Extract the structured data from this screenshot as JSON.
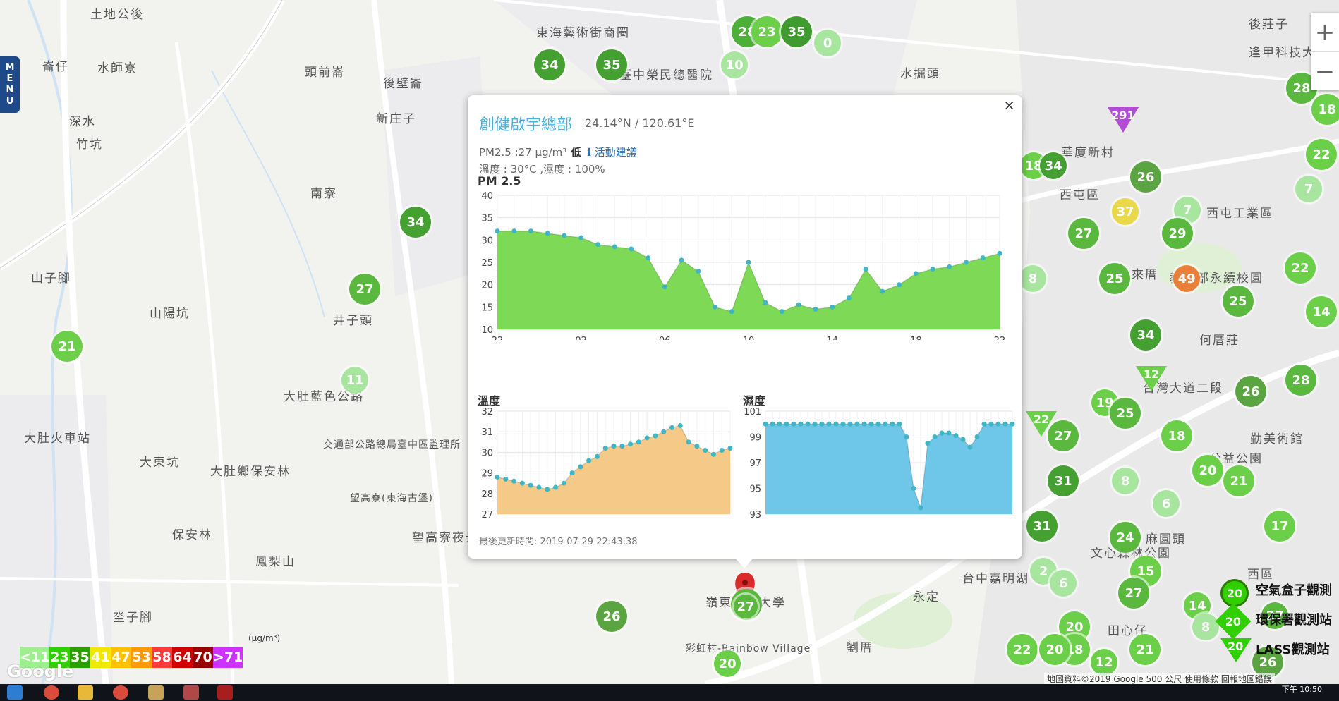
{
  "map_labels": [
    "土地公後",
    "崙仔",
    "水師寮",
    "頭前崙",
    "後壁崙",
    "新庄子",
    "深水",
    "竹坑",
    "南寮",
    "山子腳",
    "山陽坑",
    "井子頭",
    "大肚藍色公路",
    "大肚火車站",
    "大東坑",
    "大肚鄉保安林",
    "保安林",
    "鳳梨山",
    "坔子腳",
    "交通部公路總局臺中區監理所",
    "望高寮(東海古堡)",
    "望高寮夜景",
    "東海藝術街商圈",
    "臺中榮民總醫院",
    "水掘頭",
    "後莊子",
    "逢甲科技大學",
    "華廈新村",
    "西屯區",
    "西屯工業區",
    "來厝",
    "教育部永續校園",
    "何厝莊",
    "台灣大道二段",
    "彩虹村-Rainbow Village",
    "永定",
    "台中嘉明湖",
    "劉厝",
    "麻園頭",
    "西區",
    "文心森林公園",
    "勤美術館",
    "公益公園",
    "田心仔",
    "嶺東科技大學"
  ],
  "markers": [
    {
      "v": "28",
      "c": "#4caf38"
    },
    {
      "v": "23",
      "c": "#6ccf4a"
    },
    {
      "v": "35",
      "c": "#3f9a2f"
    },
    {
      "v": "0",
      "c": "#a8e6a0"
    },
    {
      "v": "34",
      "c": "#45a032"
    },
    {
      "v": "35",
      "c": "#45a032"
    },
    {
      "v": "10",
      "c": "#a8e6a0"
    },
    {
      "v": "34",
      "c": "#45a032"
    },
    {
      "v": "27",
      "c": "#59b83d"
    },
    {
      "v": "21",
      "c": "#6ccf4a"
    },
    {
      "v": "11",
      "c": "#a8e6a0"
    },
    {
      "v": "26",
      "c": "#5aa541"
    },
    {
      "v": "27",
      "c": "#59b83d"
    },
    {
      "v": "20",
      "c": "#6ccf4a"
    },
    {
      "v": "18",
      "c": "#6ccf4a"
    },
    {
      "v": "34",
      "c": "#45a032"
    },
    {
      "v": "26",
      "c": "#5aa541"
    },
    {
      "v": "37",
      "c": "#e8d84a"
    },
    {
      "v": "7",
      "c": "#a8e6a0"
    },
    {
      "v": "27",
      "c": "#59b83d"
    },
    {
      "v": "29",
      "c": "#59b83d"
    },
    {
      "v": "8",
      "c": "#a8e6a0"
    },
    {
      "v": "25",
      "c": "#59b83d"
    },
    {
      "v": "49",
      "c": "#e8803a"
    },
    {
      "v": "25",
      "c": "#59b83d"
    },
    {
      "v": "34",
      "c": "#45a032"
    },
    {
      "v": "19",
      "c": "#6ccf4a"
    },
    {
      "v": "25",
      "c": "#59b83d"
    },
    {
      "v": "18",
      "c": "#6ccf4a"
    },
    {
      "v": "27",
      "c": "#59b83d"
    },
    {
      "v": "31",
      "c": "#45a032"
    },
    {
      "v": "8",
      "c": "#a8e6a0"
    },
    {
      "v": "20",
      "c": "#6ccf4a"
    },
    {
      "v": "21",
      "c": "#6ccf4a"
    },
    {
      "v": "31",
      "c": "#45a032"
    },
    {
      "v": "24",
      "c": "#59b83d"
    },
    {
      "v": "6",
      "c": "#a8e6a0"
    },
    {
      "v": "17",
      "c": "#6ccf4a"
    },
    {
      "v": "15",
      "c": "#6ccf4a"
    },
    {
      "v": "2",
      "c": "#a8e6a0"
    },
    {
      "v": "6",
      "c": "#a8e6a0"
    },
    {
      "v": "27",
      "c": "#59b83d"
    },
    {
      "v": "14",
      "c": "#6ccf4a"
    },
    {
      "v": "20",
      "c": "#6ccf4a"
    },
    {
      "v": "18",
      "c": "#6ccf4a"
    },
    {
      "v": "21",
      "c": "#6ccf4a"
    },
    {
      "v": "12",
      "c": "#6ccf4a"
    },
    {
      "v": "22",
      "c": "#6ccf4a"
    },
    {
      "v": "28",
      "c": "#59b83d"
    },
    {
      "v": "18",
      "c": "#6ccf4a"
    },
    {
      "v": "22",
      "c": "#6ccf4a"
    },
    {
      "v": "7",
      "c": "#a8e6a0"
    },
    {
      "v": "22",
      "c": "#6ccf4a"
    },
    {
      "v": "14",
      "c": "#6ccf4a"
    },
    {
      "v": "26",
      "c": "#5aa541"
    },
    {
      "v": "28",
      "c": "#59b83d"
    },
    {
      "v": "27",
      "c": "#59b83d"
    },
    {
      "v": "26",
      "c": "#5aa541"
    },
    {
      "v": "20",
      "c": "#6ccf4a"
    },
    {
      "v": "8",
      "c": "#a8e6a0"
    }
  ],
  "triangles": [
    {
      "v": "291",
      "c": "#b24bd6"
    },
    {
      "v": "12",
      "c": "#6ccf4a"
    },
    {
      "v": "22",
      "c": "#6ccf4a"
    }
  ],
  "menu_label": "MENU",
  "zoom": {
    "in": "+",
    "out": "−"
  },
  "popup": {
    "close": "×",
    "title": "創健啟宇總部",
    "coords": "24.14°N / 120.61°E",
    "pm25_text": "PM2.5 :27 μg/m³",
    "level": "低",
    "advice": "活動建議",
    "temp_text": "溫度 : 30°C ,濕度 : 100%",
    "updated": "最後更新時間: 2019-07-29 22:43:38"
  },
  "chart_data": [
    {
      "type": "area",
      "title": "PM 2.5",
      "color": "#7ed957",
      "ylim": [
        10,
        40
      ],
      "yticks": [
        10,
        15,
        20,
        25,
        30,
        35,
        40
      ],
      "xticks": [
        "22",
        "02",
        "06",
        "10",
        "14",
        "18",
        "22"
      ],
      "values": [
        32,
        32,
        32,
        31.5,
        31,
        30.5,
        29,
        28.5,
        28,
        26,
        19.5,
        25.5,
        23,
        15,
        14,
        25,
        16,
        14,
        15.5,
        14.5,
        15,
        17,
        23.5,
        18.5,
        20,
        22.5,
        23.5,
        24,
        25,
        26,
        27
      ]
    },
    {
      "type": "area",
      "title": "溫度",
      "color": "#f5c987",
      "ylim": [
        27,
        32
      ],
      "yticks": [
        27,
        28,
        29,
        30,
        31,
        32
      ],
      "values": [
        28.8,
        28.7,
        28.6,
        28.5,
        28.4,
        28.3,
        28.2,
        28.3,
        28.5,
        29,
        29.3,
        29.6,
        29.8,
        30.2,
        30.3,
        30.3,
        30.4,
        30.5,
        30.7,
        30.8,
        31,
        31.2,
        31.3,
        30.5,
        30.3,
        30.1,
        29.9,
        30.1,
        30.2
      ]
    },
    {
      "type": "area",
      "title": "濕度",
      "color": "#6ec6e8",
      "ylim": [
        93,
        101
      ],
      "yticks": [
        93,
        95,
        97,
        99,
        101
      ],
      "values": [
        100,
        100,
        100,
        100,
        100,
        100,
        100,
        100,
        100,
        100,
        100,
        100,
        100,
        100,
        100,
        100,
        100,
        100,
        100,
        100,
        99,
        95,
        93.5,
        98.5,
        99,
        99.3,
        99.3,
        99.1,
        98.8,
        98.2,
        99,
        100,
        100,
        100,
        100,
        100
      ]
    }
  ],
  "legend": [
    {
      "label": "<11",
      "c": "#9cf08c"
    },
    {
      "label": "23",
      "c": "#31cf00"
    },
    {
      "label": "35",
      "c": "#2b9e00"
    },
    {
      "label": "41",
      "c": "#f0e800"
    },
    {
      "label": "47",
      "c": "#ffc000"
    },
    {
      "label": "53",
      "c": "#ff9a00"
    },
    {
      "label": "58",
      "c": "#ff3a3a"
    },
    {
      "label": "64",
      "c": "#d00000"
    },
    {
      "label": "70",
      "c": "#990000"
    },
    {
      "label": ">71",
      "c": "#cc33ff"
    }
  ],
  "legend_unit": "(μg/m³)",
  "google_logo": "Google",
  "station_keys": [
    {
      "label": "空氣盒子觀測",
      "marker": "20"
    },
    {
      "label": "環保署觀測站",
      "marker": "20"
    },
    {
      "label": "LASS觀測站",
      "marker": "20"
    }
  ],
  "attribution": "地圖資料©2019 Google   500 公尺      使用條款   回報地圖錯誤",
  "map_pin_value": "27",
  "clock": {
    "period": "下午",
    "time": "10:50"
  }
}
